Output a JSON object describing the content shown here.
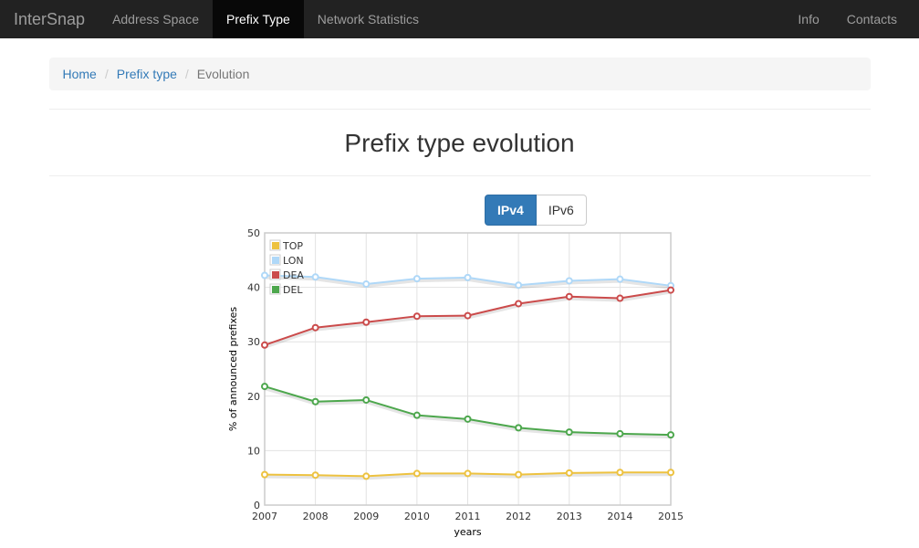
{
  "navbar": {
    "brand": "InterSnap",
    "items": [
      {
        "label": "Address Space",
        "active": false
      },
      {
        "label": "Prefix Type",
        "active": true
      },
      {
        "label": "Network Statistics",
        "active": false
      }
    ],
    "right_items": [
      {
        "label": "Info"
      },
      {
        "label": "Contacts"
      }
    ]
  },
  "breadcrumb": {
    "home": "Home",
    "section": "Prefix type",
    "current": "Evolution",
    "separator": "/"
  },
  "page": {
    "title": "Prefix type evolution"
  },
  "toggle": {
    "ipv4": "IPv4",
    "ipv6": "IPv6",
    "selected": "IPv4"
  },
  "chart_data": {
    "type": "line",
    "x": [
      2007,
      2008,
      2009,
      2010,
      2011,
      2012,
      2013,
      2014,
      2015
    ],
    "xlabel": "years",
    "ylabel": "% of announced prefixes",
    "ylim": [
      0,
      50
    ],
    "yticks": [
      0,
      10,
      20,
      30,
      40,
      50
    ],
    "grid": true,
    "legend_placement": "top-left",
    "series": [
      {
        "name": "TOP",
        "color": "#edc240",
        "values": [
          5.6,
          5.5,
          5.3,
          5.8,
          5.8,
          5.6,
          5.9,
          6.0,
          6.0
        ]
      },
      {
        "name": "LON",
        "color": "#afd8f8",
        "values": [
          42.2,
          41.9,
          40.6,
          41.6,
          41.8,
          40.4,
          41.2,
          41.5,
          40.3
        ]
      },
      {
        "name": "DEA",
        "color": "#cb4b4b",
        "values": [
          29.4,
          32.6,
          33.6,
          34.7,
          34.8,
          37.0,
          38.3,
          38.0,
          39.5
        ]
      },
      {
        "name": "DEL",
        "color": "#4da74d",
        "values": [
          21.8,
          19.0,
          19.3,
          16.5,
          15.8,
          14.2,
          13.4,
          13.1,
          12.9
        ]
      }
    ]
  }
}
